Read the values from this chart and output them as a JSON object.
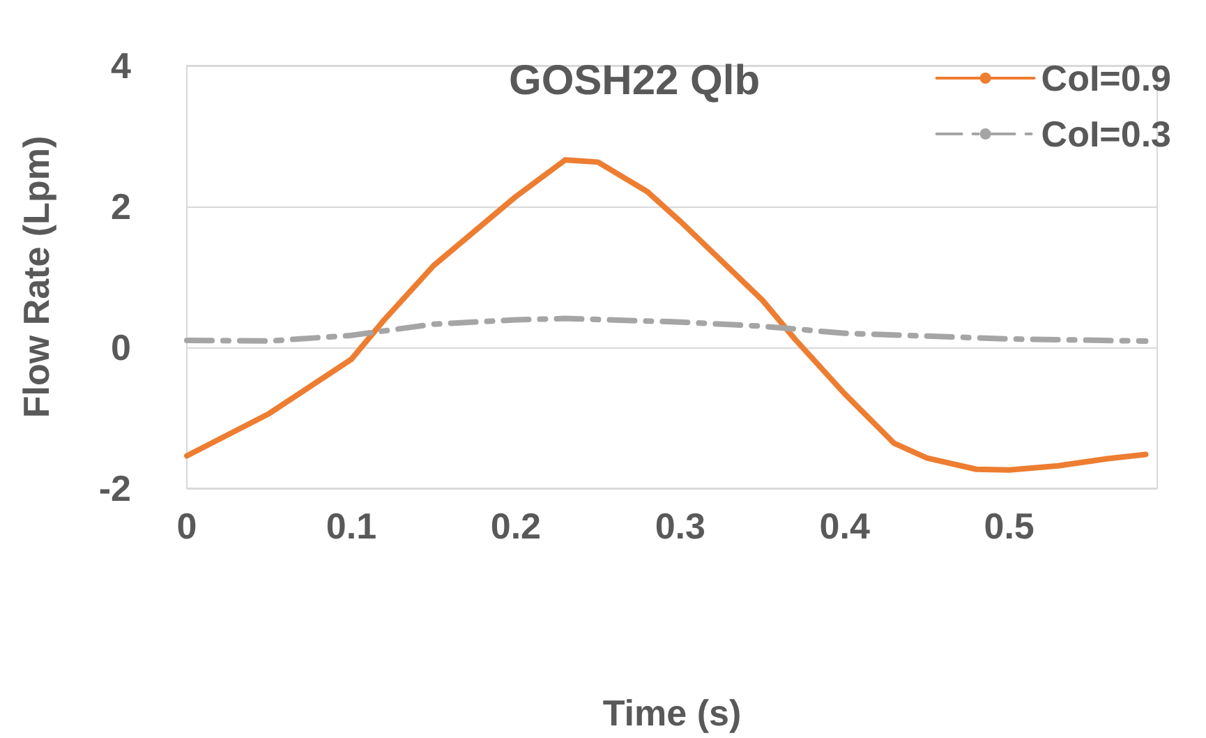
{
  "chart_data": {
    "type": "line",
    "title": "GOSH22 Qlb",
    "xlabel": "Time (s)",
    "ylabel": "Flow Rate (Lpm)",
    "xlim": [
      0,
      0.59
    ],
    "xticks": [
      0,
      0.1,
      0.2,
      0.3,
      0.4,
      0.5
    ],
    "ylim": [
      -2,
      4
    ],
    "yticks": [
      -2,
      0,
      2,
      4
    ],
    "grid": "y",
    "legend": "top right",
    "marker": "none",
    "series": [
      {
        "name": "CoI=0.9",
        "color": "#ed7d31",
        "line_style": "solid",
        "x": [
          0,
          0.05,
          0.1,
          0.12,
          0.15,
          0.2,
          0.23,
          0.25,
          0.28,
          0.3,
          0.35,
          0.37,
          0.4,
          0.43,
          0.45,
          0.48,
          0.5,
          0.53,
          0.56,
          0.583
        ],
        "values": [
          -1.54,
          -0.94,
          -0.17,
          0.39,
          1.16,
          2.14,
          2.66,
          2.63,
          2.21,
          1.79,
          0.67,
          0.11,
          -0.66,
          -1.36,
          -1.57,
          -1.73,
          -1.74,
          -1.68,
          -1.58,
          -1.52
        ]
      },
      {
        "name": "CoI=0.3",
        "color": "#a5a5a5",
        "line_style": "dashed",
        "x": [
          0,
          0.05,
          0.1,
          0.15,
          0.2,
          0.23,
          0.3,
          0.35,
          0.4,
          0.45,
          0.5,
          0.583
        ],
        "values": [
          0.1,
          0.09,
          0.17,
          0.33,
          0.39,
          0.41,
          0.36,
          0.3,
          0.2,
          0.16,
          0.12,
          0.09
        ]
      }
    ]
  }
}
